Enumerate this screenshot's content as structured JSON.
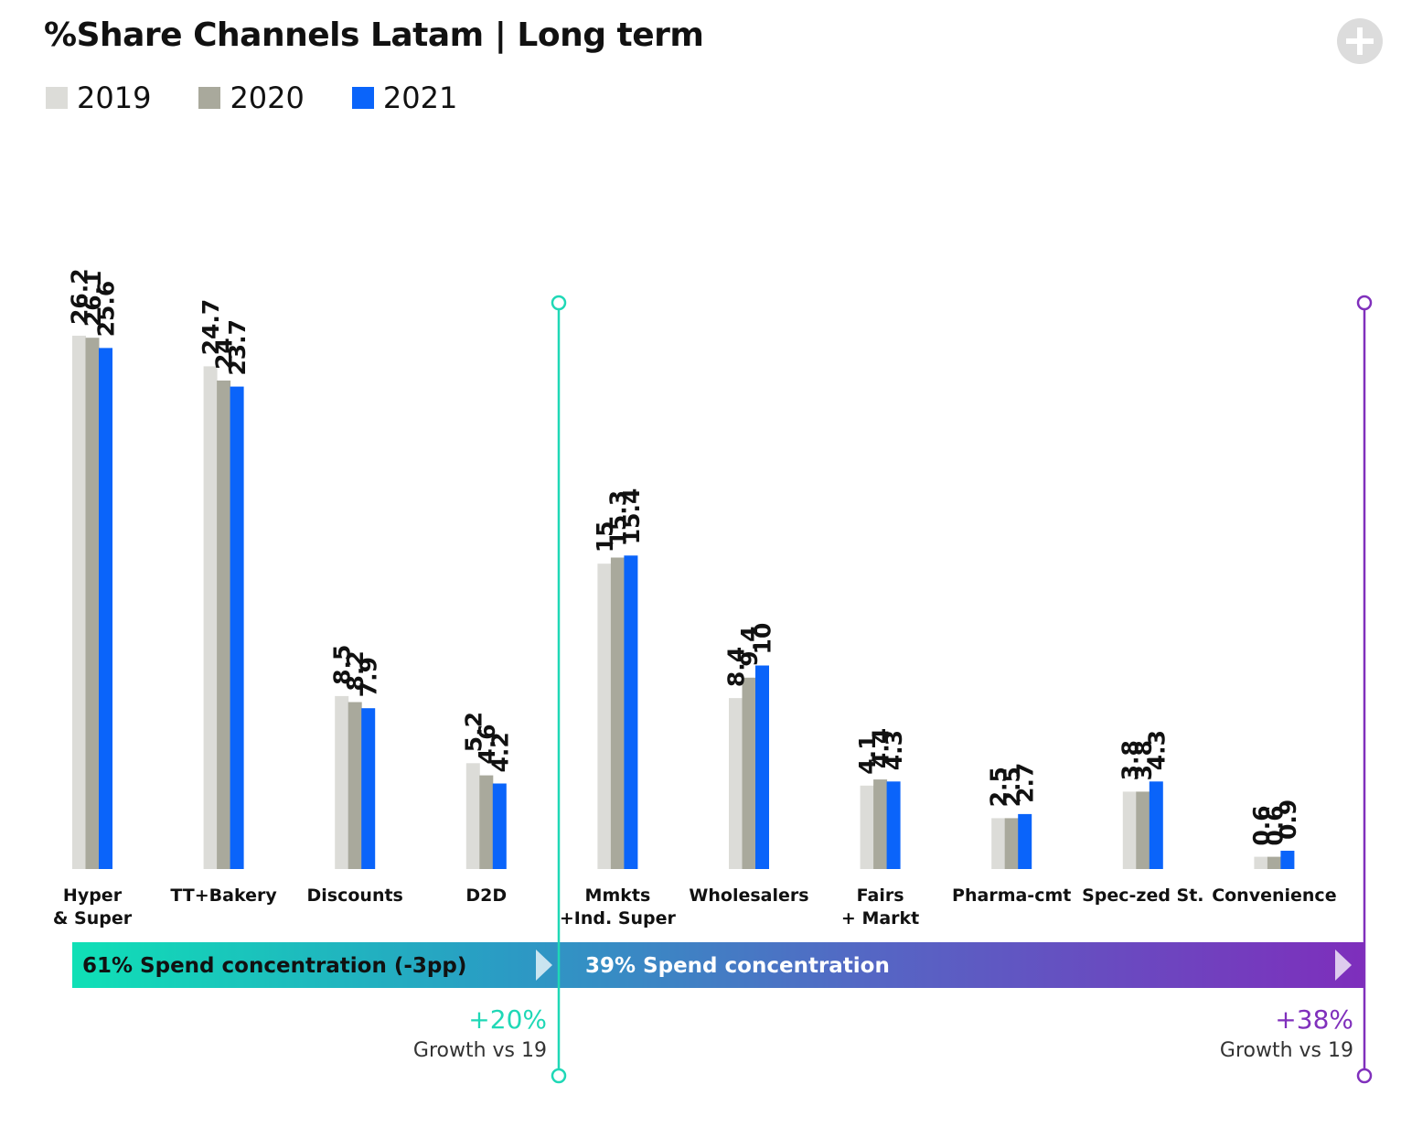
{
  "title": "%Share Channels Latam | Long term",
  "legend": [
    {
      "label": "2019",
      "color": "#dcdcd8"
    },
    {
      "label": "2020",
      "color": "#a9a99c"
    },
    {
      "label": "2021",
      "color": "#0a64fa"
    }
  ],
  "chart_data": {
    "type": "bar",
    "title": "%Share Channels Latam | Long term",
    "categories": [
      [
        "Hyper",
        "& Super"
      ],
      [
        "TT+Bakery"
      ],
      [
        "Discounts"
      ],
      [
        "D2D"
      ],
      [
        "Mmkts",
        "+Ind. Super"
      ],
      [
        "Wholesalers"
      ],
      [
        "Fairs",
        "+ Markt"
      ],
      [
        "Pharma-cmt"
      ],
      [
        "Spec-zed St."
      ],
      [
        "Convenience"
      ]
    ],
    "series": [
      {
        "name": "2019",
        "values": [
          26.2,
          24.7,
          8.5,
          5.2,
          15,
          8.4,
          4.1,
          2.5,
          3.8,
          0.6
        ]
      },
      {
        "name": "2020",
        "values": [
          26.1,
          24,
          8.2,
          4.6,
          15.3,
          9.4,
          4.4,
          2.5,
          3.8,
          0.6
        ]
      },
      {
        "name": "2021",
        "values": [
          25.6,
          23.7,
          7.9,
          4.2,
          15.4,
          10,
          4.3,
          2.7,
          4.3,
          0.9
        ]
      }
    ],
    "data_labels": [
      [
        "26.2",
        "24.7",
        "8.5",
        "5.2",
        "15",
        "8.4",
        "4.1",
        "2.5",
        "3.8",
        "0.6"
      ],
      [
        "26.1",
        "24",
        "8.2",
        "4.6",
        "15.3",
        "9.4",
        "4.4",
        "2.5",
        "3.8",
        "0.6"
      ],
      [
        "25.6",
        "23.7",
        "7.9",
        "4.2",
        "15.4",
        "10",
        "4.3",
        "2.7",
        "4.3",
        "0.9"
      ]
    ],
    "ylim": [
      0,
      26.2
    ],
    "grid": false,
    "legend_position": "top-left"
  },
  "annotations": {
    "segment1": {
      "label": "61% Spend concentration (-3pp)",
      "growth": "+20%",
      "growth_caption": "Growth vs 19",
      "color": "#1fd8b6"
    },
    "segment2": {
      "label": "39% Spend concentration",
      "growth": "+38%",
      "growth_caption": "Growth vs 19",
      "color": "#8030bc"
    }
  }
}
